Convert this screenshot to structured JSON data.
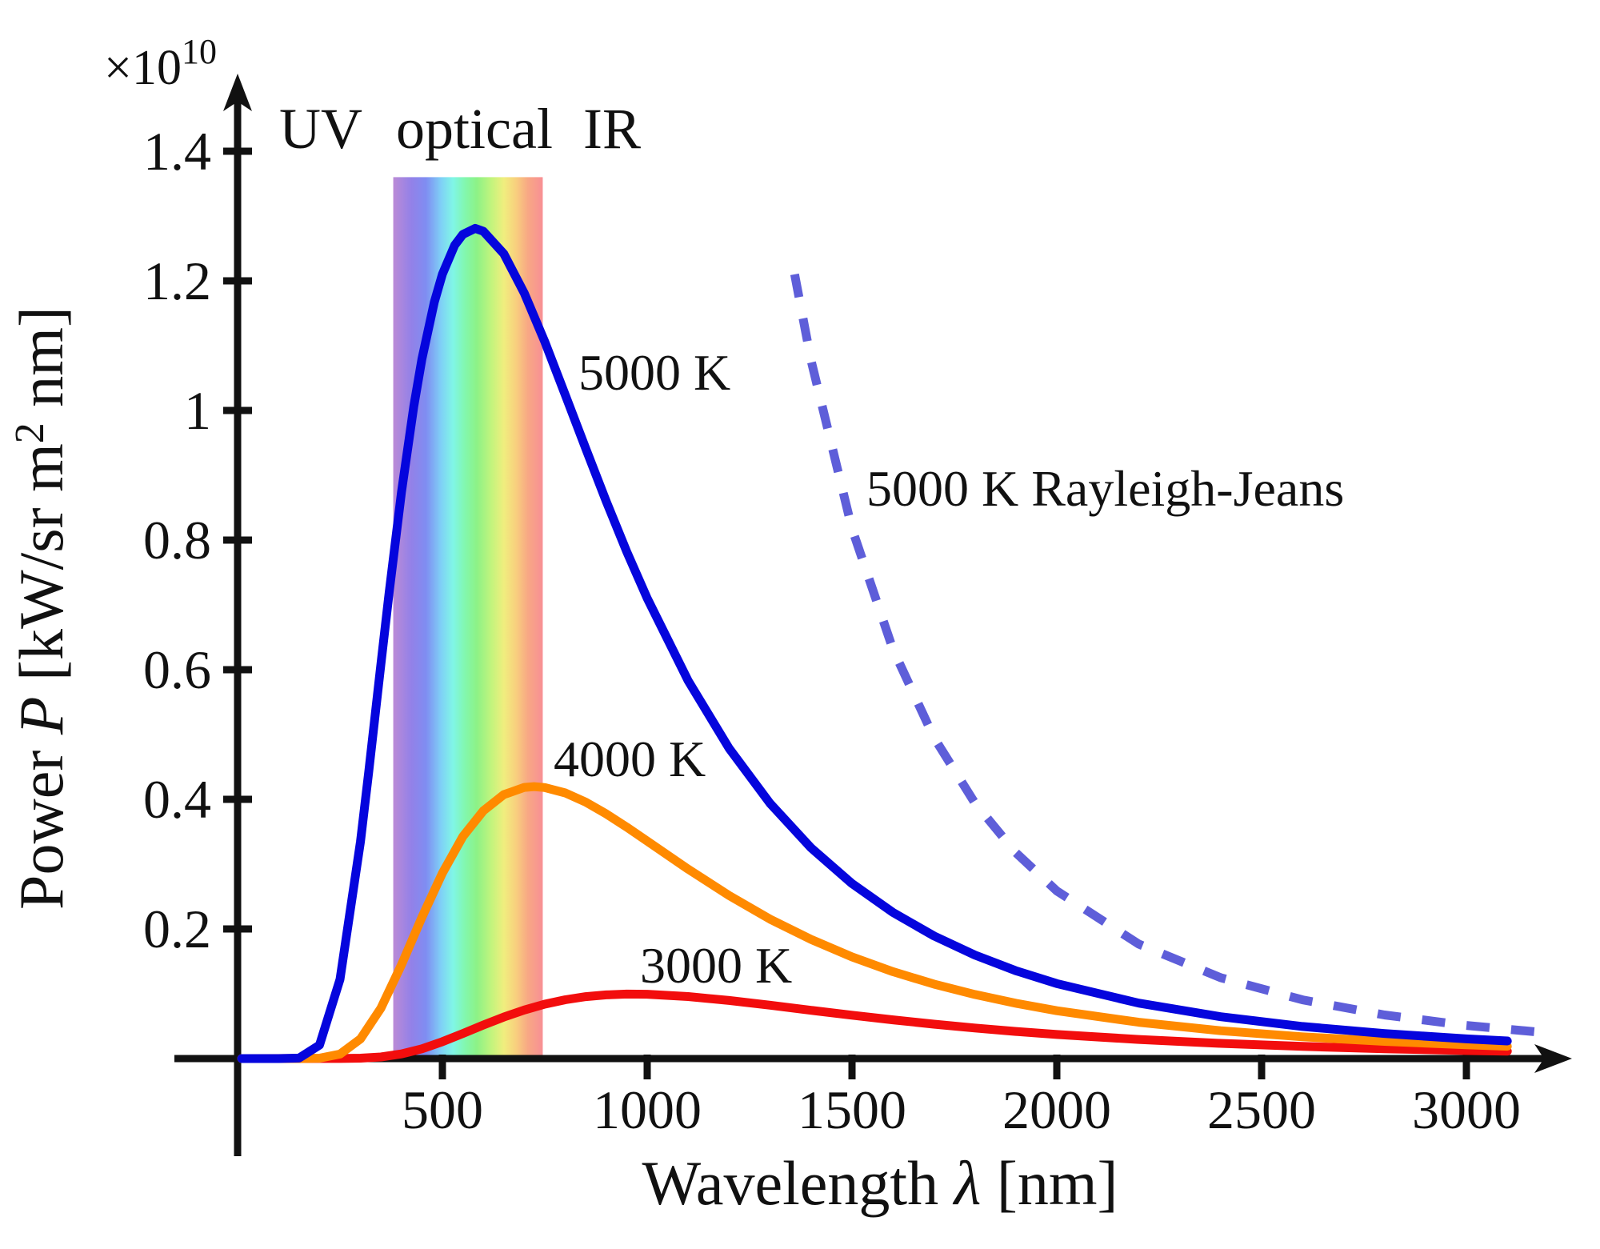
{
  "labels": {
    "scale_base": "×10",
    "scale_exp": "10",
    "xlabel_pre": "Wavelength ",
    "xlabel_sym": "λ",
    "xlabel_post": " [nm]",
    "ylabel_pre": "Power ",
    "ylabel_sym": "P",
    "ylabel_unit_pre": " [kW/sr m",
    "ylabel_sup": "2",
    "ylabel_unit_post": " nm]"
  },
  "chart_data": {
    "type": "line",
    "title": "",
    "xlabel": "Wavelength λ [nm]",
    "ylabel": "Power P [kW/sr m2 nm]",
    "y_scale_factor": "×10^10",
    "grid": false,
    "legend_position": "inline-annotations",
    "x_axis": {
      "range": [
        0,
        3200
      ],
      "ticks": [
        500,
        1000,
        1500,
        2000,
        2500,
        3000
      ],
      "tick_labels": [
        "500",
        "1000",
        "1500",
        "2000",
        "2500",
        "3000"
      ]
    },
    "y_axis": {
      "range": [
        0,
        1.45
      ],
      "ticks": [
        0.2,
        0.4,
        0.6,
        0.8,
        1.0,
        1.2,
        1.4
      ],
      "tick_labels": [
        "0.2",
        "0.4",
        "0.6",
        "0.8",
        "1",
        "1.2",
        "1.4"
      ]
    },
    "regions": [
      {
        "label": "UV"
      },
      {
        "label": "optical"
      },
      {
        "label": "IR"
      }
    ],
    "band": {
      "range_nm": [
        380,
        745
      ],
      "top_value": 1.36,
      "colors": [
        {
          "pos": 0.0,
          "color": "#bb8bd6"
        },
        {
          "pos": 0.12,
          "color": "#9381e8"
        },
        {
          "pos": 0.22,
          "color": "#7f8df2"
        },
        {
          "pos": 0.32,
          "color": "#7fd0f6"
        },
        {
          "pos": 0.4,
          "color": "#80f6e6"
        },
        {
          "pos": 0.48,
          "color": "#82f7ae"
        },
        {
          "pos": 0.56,
          "color": "#8df286"
        },
        {
          "pos": 0.66,
          "color": "#c4f47d"
        },
        {
          "pos": 0.74,
          "color": "#f0ee7e"
        },
        {
          "pos": 0.82,
          "color": "#f8d07e"
        },
        {
          "pos": 0.9,
          "color": "#f8a884"
        },
        {
          "pos": 1.0,
          "color": "#f88f95"
        }
      ]
    },
    "series": [
      {
        "name": "5000 K",
        "style": "solid",
        "color": "#0505dd",
        "label_color": "#2020cc",
        "x": [
          10,
          100,
          150,
          200,
          250,
          300,
          320,
          350,
          370,
          400,
          430,
          450,
          480,
          500,
          530,
          550,
          580,
          600,
          650,
          700,
          750,
          800,
          850,
          900,
          950,
          1000,
          1100,
          1200,
          1300,
          1400,
          1500,
          1600,
          1700,
          1800,
          1900,
          2000,
          2200,
          2400,
          2600,
          2800,
          3000,
          3100
        ],
        "values": [
          0,
          0,
          0.0007,
          0.0209,
          0.1222,
          0.3348,
          0.4412,
          0.6093,
          0.7187,
          0.8736,
          1.0061,
          1.0794,
          1.1668,
          1.2104,
          1.2551,
          1.2717,
          1.281,
          1.2764,
          1.2417,
          1.1809,
          1.106,
          1.024,
          0.9412,
          0.8598,
          0.7822,
          0.7102,
          0.583,
          0.4787,
          0.3937,
          0.3252,
          0.27,
          0.2254,
          0.1892,
          0.1597,
          0.1356,
          0.1157,
          0.0856,
          0.0646,
          0.0495,
          0.0386,
          0.0304,
          0.0272
        ]
      },
      {
        "name": "4000 K",
        "style": "solid",
        "color": "#ff8a00",
        "label_color": "#cc5c14",
        "x": [
          10,
          150,
          200,
          250,
          300,
          350,
          400,
          450,
          500,
          550,
          600,
          650,
          700,
          724,
          750,
          800,
          850,
          900,
          950,
          1000,
          1100,
          1200,
          1300,
          1400,
          1500,
          1600,
          1700,
          1800,
          1900,
          2000,
          2200,
          2400,
          2600,
          2800,
          3000,
          3100
        ],
        "values": [
          0,
          0,
          0.0006,
          0.0069,
          0.0304,
          0.0779,
          0.1446,
          0.218,
          0.2862,
          0.3427,
          0.3823,
          0.4073,
          0.4184,
          0.4196,
          0.4181,
          0.4099,
          0.3957,
          0.3775,
          0.3572,
          0.3356,
          0.2922,
          0.2516,
          0.2151,
          0.1838,
          0.1569,
          0.1341,
          0.1149,
          0.0989,
          0.0853,
          0.0738,
          0.056,
          0.043,
          0.0336,
          0.0265,
          0.0212,
          0.019
        ]
      },
      {
        "name": "3000 K",
        "style": "solid",
        "color": "#f20d0d",
        "label_color": "#f11a1a",
        "x": [
          10,
          250,
          300,
          350,
          400,
          450,
          500,
          550,
          600,
          650,
          700,
          750,
          800,
          850,
          900,
          950,
          1000,
          1100,
          1200,
          1300,
          1400,
          1500,
          1600,
          1700,
          1800,
          1900,
          2000,
          2200,
          2400,
          2600,
          2800,
          3000,
          3100
        ],
        "values": [
          0,
          0.0001,
          0.0006,
          0.0025,
          0.0072,
          0.0151,
          0.026,
          0.0386,
          0.0517,
          0.0641,
          0.075,
          0.0839,
          0.0907,
          0.0955,
          0.0983,
          0.0995,
          0.0992,
          0.0957,
          0.0896,
          0.0823,
          0.0744,
          0.0669,
          0.0597,
          0.0531,
          0.0472,
          0.0419,
          0.0372,
          0.0295,
          0.0235,
          0.0188,
          0.0152,
          0.0124,
          0.0113
        ]
      },
      {
        "name": "5000 K Rayleigh-Jeans",
        "style": "dashed",
        "color": "#5e5ed9",
        "label_color": "#2525dd",
        "x": [
          1360,
          1400,
          1500,
          1600,
          1700,
          1800,
          1900,
          2000,
          2200,
          2400,
          2600,
          2800,
          3000,
          3200
        ],
        "values": [
          1.21,
          1.0774,
          0.8176,
          0.6315,
          0.4955,
          0.3943,
          0.3176,
          0.2587,
          0.1767,
          0.1248,
          0.0906,
          0.0673,
          0.0511,
          0.0395
        ]
      }
    ]
  }
}
